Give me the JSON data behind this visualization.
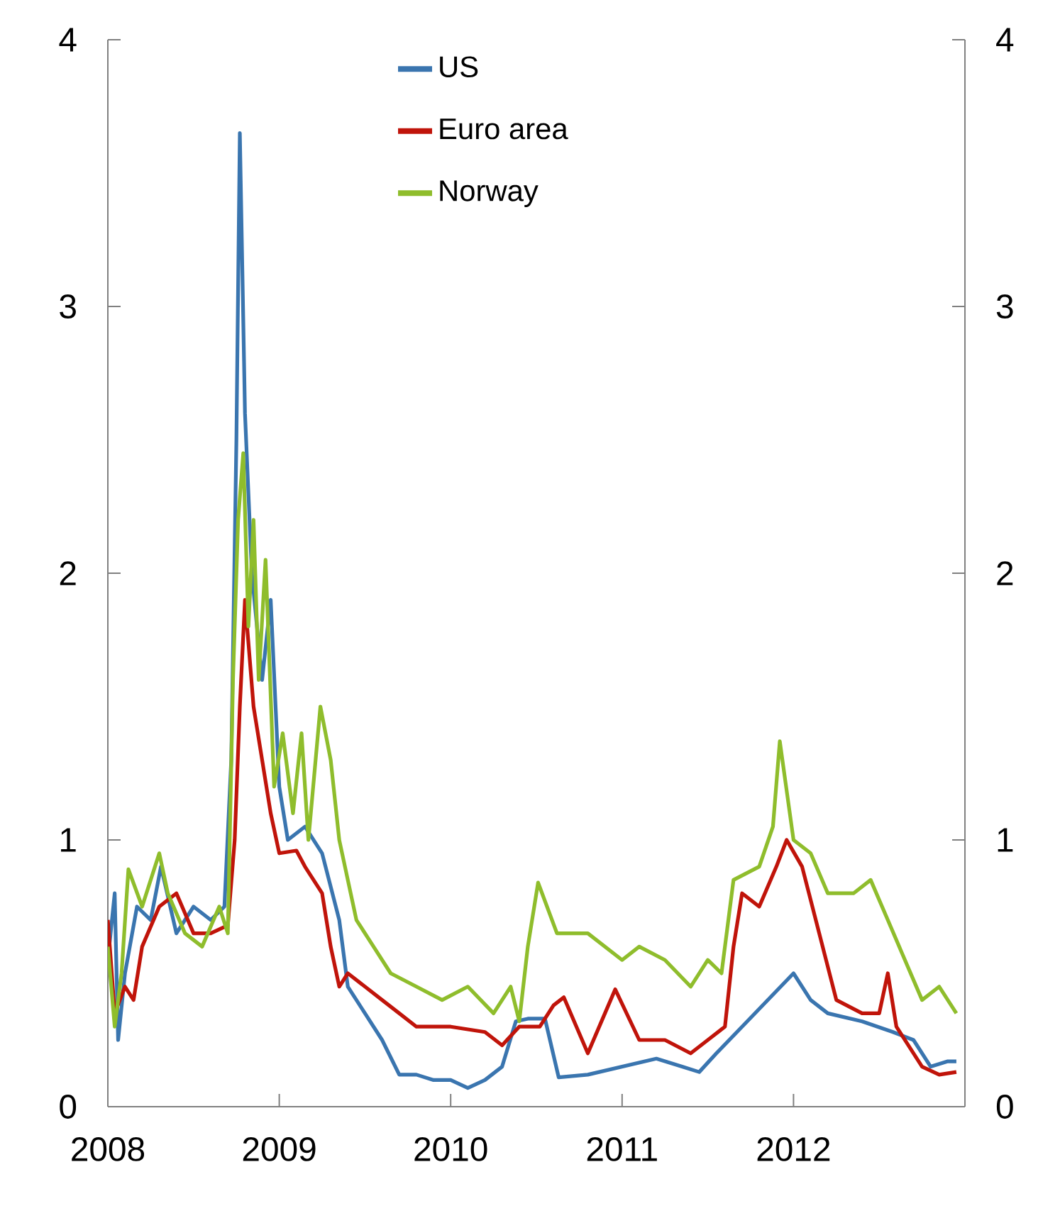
{
  "chart_data": {
    "type": "line",
    "xlim": [
      2008,
      2013
    ],
    "xticks": [
      2008,
      2009,
      2010,
      2011,
      2012
    ],
    "ylim": [
      0,
      4
    ],
    "yticks": [
      0,
      1,
      2,
      3,
      4
    ],
    "y2lim": [
      0,
      4
    ],
    "y2ticks": [
      0,
      1,
      2,
      3,
      4
    ],
    "legend": "top",
    "grid": false,
    "marker": "none",
    "line_style": "solid",
    "series": [
      {
        "name": "US",
        "color": "#3a75af",
        "x": [
          2008.0,
          2008.04,
          2008.06,
          2008.1,
          2008.17,
          2008.25,
          2008.31,
          2008.4,
          2008.5,
          2008.6,
          2008.68,
          2008.72,
          2008.75,
          2008.77,
          2008.8,
          2008.84,
          2008.9,
          2008.95,
          2009.0,
          2009.05,
          2009.15,
          2009.25,
          2009.35,
          2009.4,
          2009.5,
          2009.6,
          2009.7,
          2009.8,
          2009.9,
          2010.0,
          2010.1,
          2010.2,
          2010.3,
          2010.38,
          2010.45,
          2010.55,
          2010.63,
          2010.8,
          2011.0,
          2011.2,
          2011.35,
          2011.45,
          2011.55,
          2011.7,
          2011.85,
          2012.0,
          2012.1,
          2012.2,
          2012.4,
          2012.58,
          2012.7,
          2012.8,
          2012.9,
          2012.95
        ],
        "values": [
          0.55,
          0.8,
          0.25,
          0.5,
          0.75,
          0.7,
          0.9,
          0.65,
          0.75,
          0.7,
          0.75,
          1.3,
          2.5,
          3.65,
          2.6,
          2.0,
          1.6,
          1.9,
          1.2,
          1.0,
          1.05,
          0.95,
          0.7,
          0.45,
          0.35,
          0.25,
          0.12,
          0.12,
          0.1,
          0.1,
          0.07,
          0.1,
          0.15,
          0.32,
          0.33,
          0.33,
          0.11,
          0.12,
          0.15,
          0.18,
          0.15,
          0.13,
          0.2,
          0.3,
          0.4,
          0.5,
          0.4,
          0.35,
          0.32,
          0.28,
          0.25,
          0.15,
          0.17,
          0.17
        ]
      },
      {
        "name": "Euro area",
        "color": "#c0140a",
        "x": [
          2008.0,
          2008.04,
          2008.1,
          2008.15,
          2008.2,
          2008.3,
          2008.4,
          2008.5,
          2008.6,
          2008.7,
          2008.74,
          2008.77,
          2008.8,
          2008.85,
          2008.9,
          2008.95,
          2009.0,
          2009.1,
          2009.15,
          2009.25,
          2009.3,
          2009.35,
          2009.4,
          2009.5,
          2009.6,
          2009.7,
          2009.8,
          2010.0,
          2010.2,
          2010.3,
          2010.4,
          2010.52,
          2010.6,
          2010.66,
          2010.8,
          2010.9,
          2010.96,
          2011.1,
          2011.25,
          2011.4,
          2011.5,
          2011.6,
          2011.65,
          2011.7,
          2011.8,
          2011.9,
          2011.96,
          2012.05,
          2012.15,
          2012.25,
          2012.4,
          2012.5,
          2012.55,
          2012.6,
          2012.75,
          2012.85,
          2012.95
        ],
        "values": [
          0.7,
          0.35,
          0.45,
          0.4,
          0.6,
          0.75,
          0.8,
          0.65,
          0.65,
          0.68,
          1.0,
          1.5,
          1.9,
          1.5,
          1.3,
          1.1,
          0.95,
          0.96,
          0.9,
          0.8,
          0.6,
          0.45,
          0.5,
          0.45,
          0.4,
          0.35,
          0.3,
          0.3,
          0.28,
          0.23,
          0.3,
          0.3,
          0.38,
          0.41,
          0.2,
          0.35,
          0.44,
          0.25,
          0.25,
          0.2,
          0.25,
          0.3,
          0.6,
          0.8,
          0.75,
          0.9,
          1.0,
          0.9,
          0.65,
          0.4,
          0.35,
          0.35,
          0.5,
          0.3,
          0.15,
          0.12,
          0.13
        ]
      },
      {
        "name": "Norway",
        "color": "#8fbd2c",
        "x": [
          2008.0,
          2008.04,
          2008.08,
          2008.12,
          2008.2,
          2008.3,
          2008.35,
          2008.45,
          2008.55,
          2008.65,
          2008.7,
          2008.73,
          2008.76,
          2008.79,
          2008.82,
          2008.85,
          2008.88,
          2008.92,
          2008.97,
          2009.02,
          2009.08,
          2009.13,
          2009.17,
          2009.24,
          2009.3,
          2009.35,
          2009.45,
          2009.55,
          2009.65,
          2009.8,
          2009.95,
          2010.1,
          2010.25,
          2010.35,
          2010.4,
          2010.45,
          2010.51,
          2010.62,
          2010.8,
          2011.0,
          2011.1,
          2011.25,
          2011.4,
          2011.5,
          2011.58,
          2011.65,
          2011.8,
          2011.88,
          2011.92,
          2012.0,
          2012.1,
          2012.2,
          2012.35,
          2012.45,
          2012.55,
          2012.65,
          2012.75,
          2012.85,
          2012.95
        ],
        "values": [
          0.6,
          0.3,
          0.5,
          0.89,
          0.75,
          0.95,
          0.8,
          0.65,
          0.6,
          0.75,
          0.65,
          1.6,
          2.2,
          2.45,
          1.8,
          2.2,
          1.6,
          2.05,
          1.2,
          1.4,
          1.1,
          1.4,
          1.0,
          1.5,
          1.3,
          1.0,
          0.7,
          0.6,
          0.5,
          0.45,
          0.4,
          0.45,
          0.35,
          0.45,
          0.32,
          0.6,
          0.84,
          0.65,
          0.65,
          0.55,
          0.6,
          0.55,
          0.45,
          0.55,
          0.5,
          0.85,
          0.9,
          1.05,
          1.37,
          1.0,
          0.95,
          0.8,
          0.8,
          0.85,
          0.7,
          0.55,
          0.4,
          0.45,
          0.35
        ]
      }
    ]
  }
}
